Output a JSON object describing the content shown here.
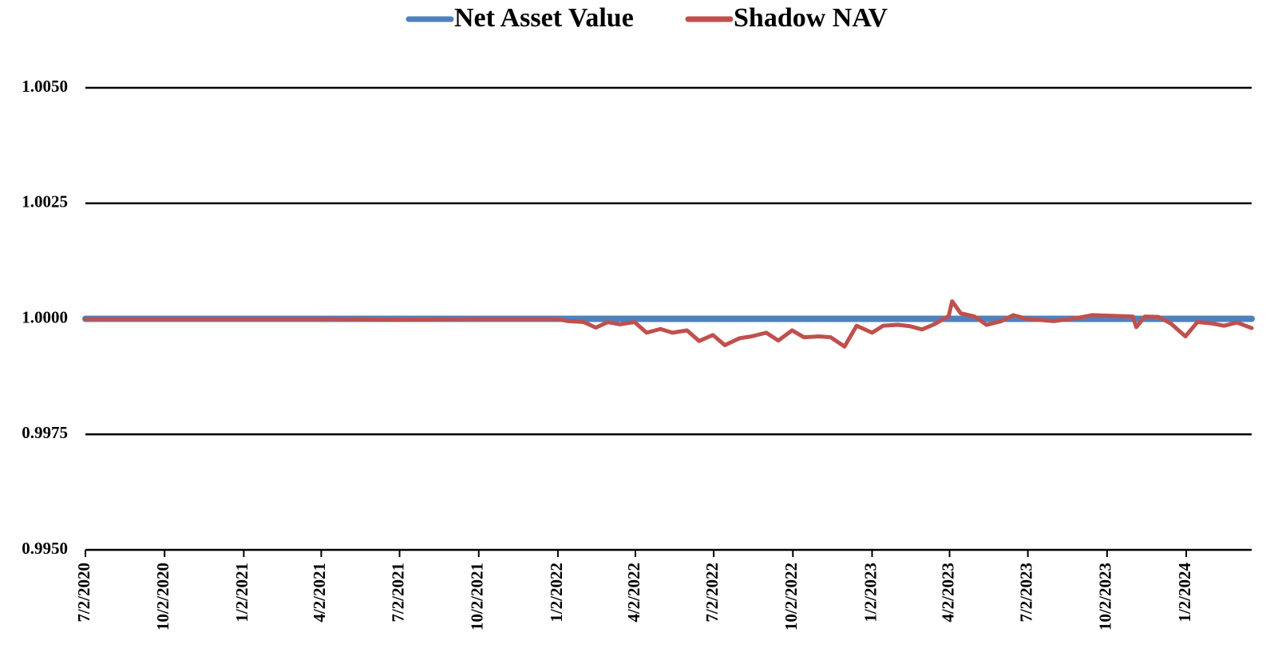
{
  "chart_data": {
    "type": "line",
    "x": [
      "7/2/2020",
      "10/2/2020",
      "1/4/2021",
      "4/1/2021",
      "7/1/2021",
      "10/1/2021",
      "12/31/2021",
      "1/14/2022",
      "2/1/2022",
      "2/15/2022",
      "3/1/2022",
      "3/15/2022",
      "4/1/2022",
      "4/15/2022",
      "5/1/2022",
      "5/15/2022",
      "6/1/2022",
      "6/15/2022",
      "7/1/2022",
      "7/15/2022",
      "8/1/2022",
      "8/15/2022",
      "9/1/2022",
      "9/15/2022",
      "10/1/2022",
      "10/15/2022",
      "11/1/2022",
      "11/15/2022",
      "12/1/2022",
      "12/15/2022",
      "1/2/2023",
      "1/15/2023",
      "2/1/2023",
      "2/15/2023",
      "3/1/2023",
      "3/15/2023",
      "4/1/2023",
      "4/5/2023",
      "4/15/2023",
      "5/1/2023",
      "5/15/2023",
      "6/1/2023",
      "6/15/2023",
      "7/1/2023",
      "8/1/2023",
      "9/1/2023",
      "9/15/2023",
      "10/1/2023",
      "10/15/2023",
      "11/1/2023",
      "11/5/2023",
      "11/15/2023",
      "12/1/2023",
      "12/15/2023",
      "1/1/2024",
      "1/15/2024",
      "2/1/2024",
      "2/15/2024",
      "3/1/2024",
      "3/18/2024"
    ],
    "series": [
      {
        "name": "Net Asset Value",
        "color": "#4f81bd",
        "values": [
          1,
          1,
          1,
          1,
          1,
          1,
          1,
          1,
          1,
          1,
          1,
          1,
          1,
          1,
          1,
          1,
          1,
          1,
          1,
          1,
          1,
          1,
          1,
          1,
          1,
          1,
          1,
          1,
          1,
          1,
          1,
          1,
          1,
          1,
          1,
          1,
          1,
          1,
          1,
          1,
          1,
          1,
          1,
          1,
          1,
          1,
          1,
          1,
          1,
          1,
          1,
          1,
          1,
          1,
          1,
          1,
          1,
          1,
          1,
          1
        ]
      },
      {
        "name": "Shadow NAV",
        "color": "#c0504d",
        "values": [
          1,
          1,
          1,
          1,
          0.99998,
          1,
          1,
          0.99995,
          0.99993,
          0.99981,
          0.99993,
          0.99988,
          0.99993,
          0.9997,
          0.99978,
          0.9997,
          0.99975,
          0.99952,
          0.99965,
          0.99943,
          0.99958,
          0.99962,
          0.9997,
          0.99953,
          0.99975,
          0.9996,
          0.99962,
          0.9996,
          0.9994,
          0.99985,
          0.9997,
          0.99985,
          0.99987,
          0.99984,
          0.99977,
          0.99988,
          1.00006,
          1.00038,
          1.00012,
          1.00005,
          0.99987,
          0.99995,
          1.00008,
          1,
          0.99995,
          1.00003,
          1.00008,
          1.00007,
          1.00006,
          1.00005,
          0.99982,
          1.00005,
          1.00004,
          0.9999,
          0.99962,
          0.99993,
          0.9999,
          0.99985,
          0.99992,
          0.9998
        ]
      }
    ],
    "xlim": [
      "7/2/2020",
      "3/18/2024"
    ],
    "xticks": [
      "7/2/2020",
      "10/2/2020",
      "1/2/2021",
      "4/2/2021",
      "7/2/2021",
      "10/2/2021",
      "1/2/2022",
      "4/2/2022",
      "7/2/2022",
      "10/2/2022",
      "1/2/2023",
      "4/2/2023",
      "7/2/2023",
      "10/2/2023",
      "1/2/2024"
    ],
    "ylim": [
      0.995,
      1.005
    ],
    "yticks": [
      {
        "value": 0.995,
        "label": "0.9950"
      },
      {
        "value": 0.9975,
        "label": "0.9975"
      },
      {
        "value": 1,
        "label": "1.0000"
      },
      {
        "value": 1.0025,
        "label": "1.0025"
      },
      {
        "value": 1.005,
        "label": "1.0050"
      }
    ],
    "grid": true,
    "legend": "top"
  }
}
